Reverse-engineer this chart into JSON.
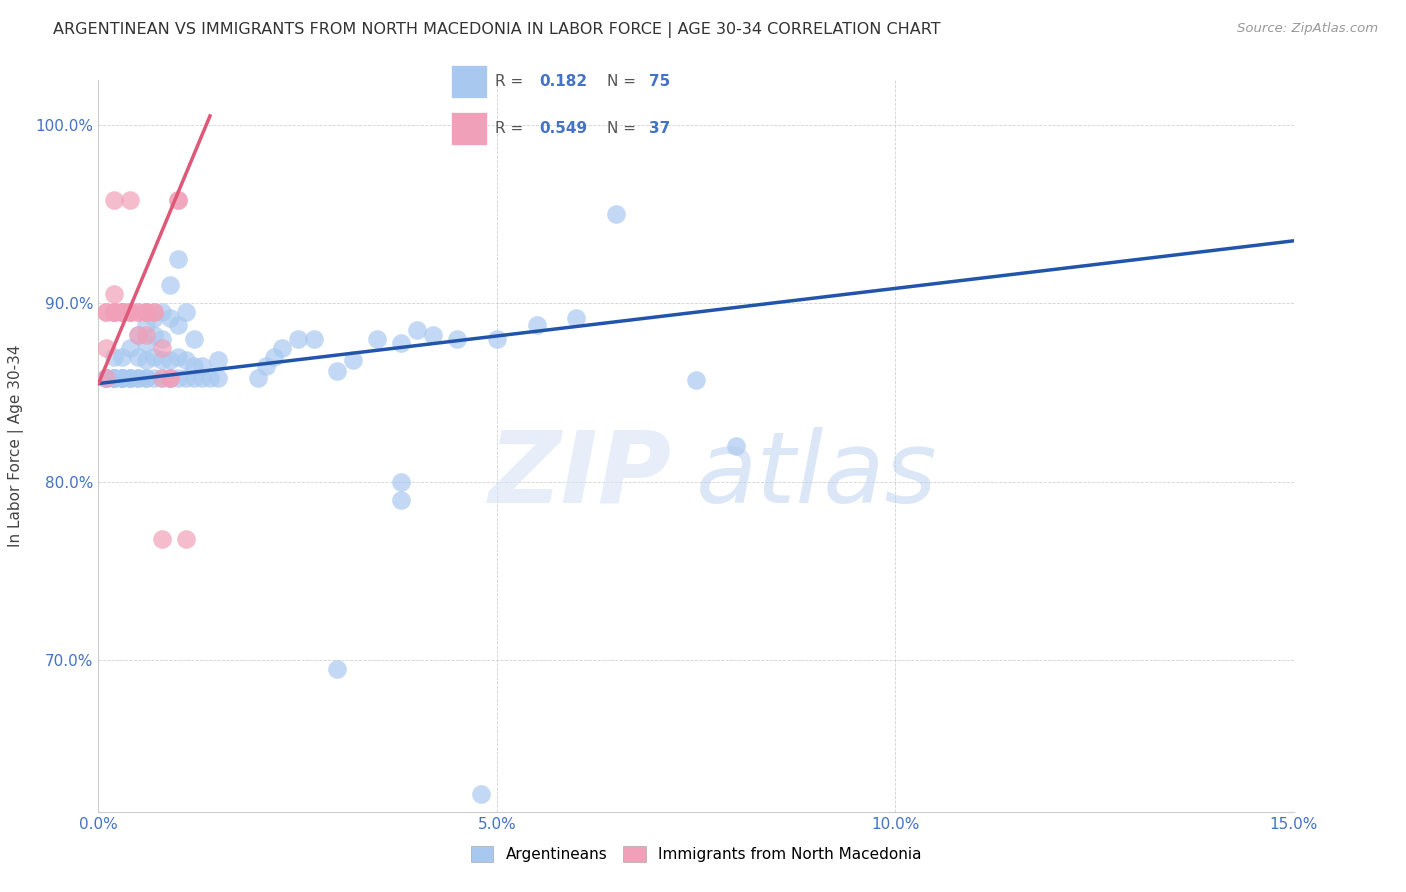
{
  "title": "ARGENTINEAN VS IMMIGRANTS FROM NORTH MACEDONIA IN LABOR FORCE | AGE 30-34 CORRELATION CHART",
  "source": "Source: ZipAtlas.com",
  "ylabel": "In Labor Force | Age 30-34",
  "xlim": [
    0.0,
    0.15
  ],
  "ylim": [
    0.615,
    1.025
  ],
  "xticks": [
    0.0,
    0.05,
    0.1,
    0.15
  ],
  "xticklabels": [
    "0.0%",
    "5.0%",
    "10.0%",
    "15.0%"
  ],
  "yticks": [
    0.7,
    0.8,
    0.9,
    1.0
  ],
  "yticklabels": [
    "70.0%",
    "80.0%",
    "90.0%",
    "100.0%"
  ],
  "blue_color": "#A8C8F0",
  "pink_color": "#F0A0B8",
  "blue_line_color": "#2255AA",
  "pink_line_color": "#E05878",
  "blue_line_x": [
    0.0,
    0.15
  ],
  "blue_line_y": [
    0.855,
    0.935
  ],
  "pink_line_x": [
    0.0,
    0.014
  ],
  "pink_line_y": [
    0.855,
    1.005
  ],
  "blue_points": [
    [
      0.001,
      0.858
    ],
    [
      0.001,
      0.858
    ],
    [
      0.001,
      0.858
    ],
    [
      0.001,
      0.858
    ],
    [
      0.001,
      0.858
    ],
    [
      0.002,
      0.858
    ],
    [
      0.002,
      0.858
    ],
    [
      0.002,
      0.858
    ],
    [
      0.002,
      0.858
    ],
    [
      0.002,
      0.87
    ],
    [
      0.003,
      0.858
    ],
    [
      0.003,
      0.858
    ],
    [
      0.003,
      0.858
    ],
    [
      0.003,
      0.858
    ],
    [
      0.003,
      0.87
    ],
    [
      0.004,
      0.858
    ],
    [
      0.004,
      0.858
    ],
    [
      0.004,
      0.858
    ],
    [
      0.004,
      0.875
    ],
    [
      0.005,
      0.858
    ],
    [
      0.005,
      0.858
    ],
    [
      0.005,
      0.87
    ],
    [
      0.005,
      0.882
    ],
    [
      0.006,
      0.858
    ],
    [
      0.006,
      0.858
    ],
    [
      0.006,
      0.868
    ],
    [
      0.006,
      0.878
    ],
    [
      0.006,
      0.888
    ],
    [
      0.007,
      0.858
    ],
    [
      0.007,
      0.87
    ],
    [
      0.007,
      0.882
    ],
    [
      0.007,
      0.892
    ],
    [
      0.008,
      0.858
    ],
    [
      0.008,
      0.868
    ],
    [
      0.008,
      0.88
    ],
    [
      0.008,
      0.895
    ],
    [
      0.009,
      0.858
    ],
    [
      0.009,
      0.868
    ],
    [
      0.009,
      0.892
    ],
    [
      0.009,
      0.91
    ],
    [
      0.01,
      0.858
    ],
    [
      0.01,
      0.87
    ],
    [
      0.01,
      0.888
    ],
    [
      0.01,
      0.925
    ],
    [
      0.011,
      0.858
    ],
    [
      0.011,
      0.868
    ],
    [
      0.011,
      0.895
    ],
    [
      0.012,
      0.858
    ],
    [
      0.012,
      0.865
    ],
    [
      0.012,
      0.88
    ],
    [
      0.013,
      0.858
    ],
    [
      0.013,
      0.865
    ],
    [
      0.014,
      0.858
    ],
    [
      0.015,
      0.858
    ],
    [
      0.015,
      0.868
    ],
    [
      0.02,
      0.858
    ],
    [
      0.021,
      0.865
    ],
    [
      0.022,
      0.87
    ],
    [
      0.023,
      0.875
    ],
    [
      0.025,
      0.88
    ],
    [
      0.027,
      0.88
    ],
    [
      0.03,
      0.862
    ],
    [
      0.032,
      0.868
    ],
    [
      0.035,
      0.88
    ],
    [
      0.038,
      0.878
    ],
    [
      0.04,
      0.885
    ],
    [
      0.042,
      0.882
    ],
    [
      0.045,
      0.88
    ],
    [
      0.05,
      0.88
    ],
    [
      0.055,
      0.888
    ],
    [
      0.06,
      0.892
    ],
    [
      0.065,
      0.95
    ],
    [
      0.075,
      0.857
    ],
    [
      0.08,
      0.82
    ],
    [
      0.038,
      0.8
    ],
    [
      0.038,
      0.79
    ],
    [
      0.03,
      0.695
    ],
    [
      0.048,
      0.625
    ]
  ],
  "pink_points": [
    [
      0.001,
      0.858
    ],
    [
      0.001,
      0.875
    ],
    [
      0.001,
      0.895
    ],
    [
      0.001,
      0.895
    ],
    [
      0.002,
      0.895
    ],
    [
      0.002,
      0.895
    ],
    [
      0.002,
      0.895
    ],
    [
      0.002,
      0.905
    ],
    [
      0.002,
      0.895
    ],
    [
      0.002,
      0.958
    ],
    [
      0.003,
      0.895
    ],
    [
      0.003,
      0.895
    ],
    [
      0.003,
      0.895
    ],
    [
      0.003,
      0.895
    ],
    [
      0.003,
      0.895
    ],
    [
      0.003,
      0.895
    ],
    [
      0.004,
      0.895
    ],
    [
      0.004,
      0.895
    ],
    [
      0.004,
      0.895
    ],
    [
      0.004,
      0.958
    ],
    [
      0.005,
      0.882
    ],
    [
      0.005,
      0.895
    ],
    [
      0.005,
      0.895
    ],
    [
      0.006,
      0.882
    ],
    [
      0.006,
      0.895
    ],
    [
      0.006,
      0.895
    ],
    [
      0.006,
      0.895
    ],
    [
      0.007,
      0.895
    ],
    [
      0.007,
      0.895
    ],
    [
      0.008,
      0.875
    ],
    [
      0.008,
      0.858
    ],
    [
      0.008,
      0.768
    ],
    [
      0.009,
      0.858
    ],
    [
      0.009,
      0.858
    ],
    [
      0.01,
      0.958
    ],
    [
      0.01,
      0.958
    ],
    [
      0.011,
      0.768
    ]
  ]
}
